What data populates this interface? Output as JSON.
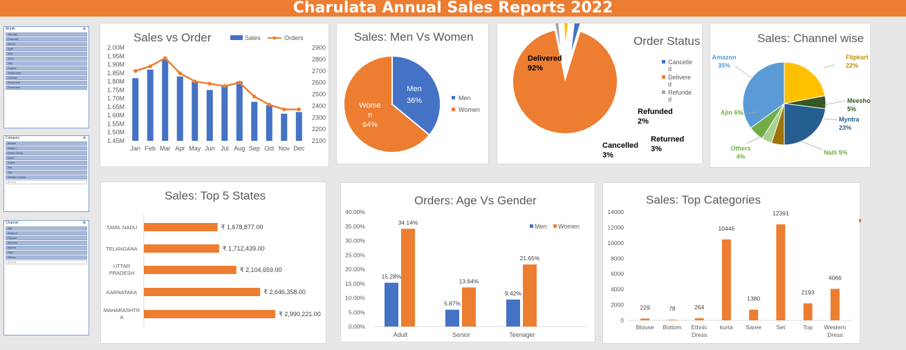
{
  "banner": {
    "title": "Charulata Annual Sales Reports 2022"
  },
  "slicers": [
    {
      "header": "Month",
      "items": [
        "January",
        "February",
        "March",
        "April",
        "May",
        "June",
        "July",
        "August",
        "September",
        "October",
        "November",
        "December"
      ],
      "off": []
    },
    {
      "header": "Category",
      "items": [
        "Blouse",
        "Bottom",
        "Ethnic Dress",
        "kurta",
        "Saree",
        "Set",
        "Top",
        "Western Dress",
        "(blank)"
      ],
      "off": [
        8
      ]
    },
    {
      "header": "Channel",
      "items": [
        "Ajio",
        "Amazon",
        "Flipkart",
        "Meesho",
        "Myntra",
        "Nalli",
        "Others",
        "(blank)"
      ],
      "off": [
        7
      ]
    }
  ],
  "colors": {
    "orange": "#ed7d31",
    "blue": "#4472c4",
    "gray": "#a5a5a5",
    "yellow": "#ffc000",
    "banner": "#ed7d31"
  },
  "chart_data": [
    {
      "id": "sales_vs_order",
      "type": "bar",
      "title": "Sales vs Order",
      "categories": [
        "Jan",
        "Feb",
        "Mar",
        "Apr",
        "May",
        "Jun",
        "Jul",
        "Aug",
        "Sep",
        "Oct",
        "Nov",
        "Dec"
      ],
      "series": [
        {
          "name": "Sales",
          "type": "bar",
          "axis": "left",
          "values": [
            1.82,
            1.87,
            1.93,
            1.83,
            1.8,
            1.75,
            1.78,
            1.8,
            1.68,
            1.66,
            1.61,
            1.62
          ]
        },
        {
          "name": "Orders",
          "type": "line",
          "axis": "right",
          "values": [
            2700,
            2740,
            2810,
            2680,
            2610,
            2590,
            2570,
            2600,
            2480,
            2410,
            2370,
            2370
          ]
        }
      ],
      "yticks_left": [
        "2.00M",
        "1.95M",
        "1.90M",
        "1.85M",
        "1.80M",
        "1.75M",
        "1.70M",
        "1.65M",
        "1.60M",
        "1.55M",
        "1.50M",
        "1.45M"
      ],
      "yticks_right": [
        "2900",
        "2800",
        "2700",
        "2600",
        "2500",
        "2400",
        "2300",
        "2200",
        "2100"
      ],
      "ylim_left": [
        1.45,
        2.0
      ],
      "ylim_right": [
        2100,
        2900
      ]
    },
    {
      "id": "men_vs_women",
      "type": "pie",
      "title": "Sales: Men Vs Women",
      "labels": [
        "Men",
        "Women"
      ],
      "values": [
        36,
        64
      ],
      "data_labels": [
        [
          "Men",
          "36%"
        ],
        [
          "Wome",
          "n",
          "64%"
        ]
      ],
      "legend": [
        "Men",
        "Women"
      ]
    },
    {
      "id": "order_status",
      "type": "pie",
      "title": "Order Status",
      "labels": [
        "Cancelled",
        "Delivered",
        "Refunded",
        "Returned"
      ],
      "values": [
        3,
        92,
        2,
        3
      ],
      "data_labels": [
        [
          "Cancelled",
          "3%"
        ],
        [
          "Delivered",
          "92%"
        ],
        [
          "Refunded",
          "2%"
        ],
        [
          "Returned",
          "3%"
        ]
      ],
      "legend": [
        [
          "Cancelle",
          "d"
        ],
        [
          "Delivere",
          "d"
        ],
        [
          "Refunde",
          "d"
        ]
      ]
    },
    {
      "id": "channel_wise",
      "type": "pie",
      "title": "Sales: Channel wise",
      "labels": [
        "Amazon",
        "Flipkart",
        "Meesho",
        "Myntra",
        "Nalli",
        "Others",
        "Ajio"
      ],
      "values": [
        35,
        22,
        5,
        23,
        5,
        4,
        6
      ],
      "data_labels": [
        [
          "Amazon",
          "35%"
        ],
        [
          "Flipkart",
          "22%"
        ],
        [
          "Meesho",
          "5%"
        ],
        [
          "Myntra",
          "23%"
        ],
        [
          "Nalli 5%"
        ],
        [
          "Others",
          "4%"
        ],
        [
          "Ajio 6%"
        ]
      ]
    },
    {
      "id": "top_states",
      "type": "bar",
      "orientation": "horizontal",
      "title": "Sales: Top 5 States",
      "categories": [
        [
          "TAMIL NADU"
        ],
        [
          "TELANGANA"
        ],
        [
          "UTTAR",
          "PRADESH"
        ],
        [
          "KARNATAKA"
        ],
        [
          "MAHARASHTR",
          "A"
        ]
      ],
      "values": [
        1678877,
        1712439,
        2104659,
        2646358,
        2990221
      ],
      "data_labels": [
        "₹ 1,678,877.00",
        "₹ 1,712,439.00",
        "₹ 2,104,659.00",
        "₹ 2,646,358.00",
        "₹ 2,990,221.00"
      ]
    },
    {
      "id": "age_vs_gender",
      "type": "bar",
      "title": "Orders: Age Vs Gender",
      "categories": [
        "Adult",
        "Senior",
        "Teenager"
      ],
      "series": [
        {
          "name": "Men",
          "values": [
            15.28,
            5.87,
            9.42
          ],
          "labels": [
            "15.28%",
            "5.87%",
            "9.42%"
          ]
        },
        {
          "name": "Women",
          "values": [
            34.14,
            13.64,
            21.65
          ],
          "labels": [
            "34.14%",
            "13.64%",
            "21.65%"
          ]
        }
      ],
      "yticks": [
        "40.00%",
        "35.00%",
        "30.00%",
        "25.00%",
        "20.00%",
        "15.00%",
        "10.00%",
        "5.00%",
        "0.00%"
      ],
      "ylim": [
        0,
        40
      ]
    },
    {
      "id": "top_categories",
      "type": "bar",
      "title": "Sales: Top Categories",
      "categories": [
        [
          "Blouse"
        ],
        [
          "Bottom"
        ],
        [
          "Ethnic",
          "Dress"
        ],
        [
          "kurta"
        ],
        [
          "Saree"
        ],
        [
          "Set"
        ],
        [
          "Top"
        ],
        [
          "Western",
          "Dress"
        ]
      ],
      "series": [
        {
          "name": "Total",
          "values": [
            229,
            78,
            264,
            10446,
            1380,
            12391,
            2193,
            4066
          ]
        }
      ],
      "yticks": [
        "14000",
        "12000",
        "10000",
        "8000",
        "6000",
        "4000",
        "2000",
        "0"
      ],
      "ylim": [
        0,
        14000
      ]
    }
  ]
}
